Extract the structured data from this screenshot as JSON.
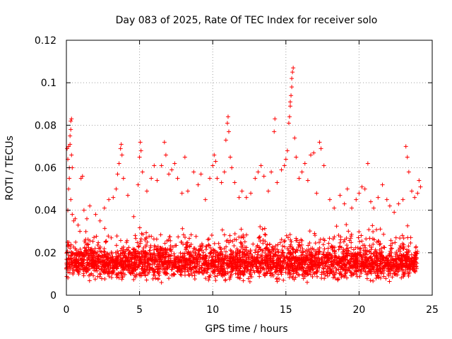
{
  "chart_data": {
    "type": "scatter",
    "title": "Day 083 of 2025, Rate Of TEC Index for receiver solo",
    "xlabel": "GPS time / hours",
    "ylabel": "ROTI / TECUs",
    "xlim": [
      0,
      25
    ],
    "ylim": [
      0,
      0.12
    ],
    "x_ticks": [
      0,
      5,
      10,
      15,
      20,
      25
    ],
    "x_tick_labels": [
      "0",
      "5",
      "10",
      "15",
      "20",
      "25"
    ],
    "y_ticks": [
      0,
      0.02,
      0.04,
      0.06,
      0.08,
      0.1,
      0.12
    ],
    "y_tick_labels": [
      "0",
      "0.02",
      "0.04",
      "0.06",
      "0.08",
      "0.1",
      "0.12"
    ],
    "grid": true,
    "legend": "none",
    "marker": "plus",
    "marker_color": "#ff0000",
    "series": [
      {
        "points": [
          [
            0.05,
            0.069
          ],
          [
            0.1,
            0.064
          ],
          [
            0.15,
            0.07
          ],
          [
            0.2,
            0.06
          ],
          [
            0.25,
            0.075
          ],
          [
            0.3,
            0.082
          ],
          [
            0.35,
            0.083
          ],
          [
            0.3,
            0.078
          ],
          [
            0.25,
            0.071
          ],
          [
            0.35,
            0.066
          ],
          [
            0.4,
            0.06
          ],
          [
            0.2,
            0.055
          ],
          [
            0.15,
            0.05
          ],
          [
            0.3,
            0.045
          ],
          [
            0.1,
            0.04
          ],
          [
            0.4,
            0.038
          ],
          [
            0.5,
            0.035
          ],
          [
            0.6,
            0.036
          ],
          [
            0.8,
            0.033
          ],
          [
            1.0,
            0.055
          ],
          [
            1.1,
            0.056
          ],
          [
            1.2,
            0.04
          ],
          [
            1.4,
            0.036
          ],
          [
            1.6,
            0.042
          ],
          [
            2.0,
            0.038
          ],
          [
            2.3,
            0.035
          ],
          [
            2.6,
            0.041
          ],
          [
            2.9,
            0.045
          ],
          [
            3.2,
            0.046
          ],
          [
            3.4,
            0.05
          ],
          [
            3.5,
            0.057
          ],
          [
            3.6,
            0.062
          ],
          [
            3.7,
            0.069
          ],
          [
            3.75,
            0.071
          ],
          [
            3.8,
            0.066
          ],
          [
            3.9,
            0.055
          ],
          [
            4.2,
            0.047
          ],
          [
            4.6,
            0.037
          ],
          [
            4.9,
            0.052
          ],
          [
            5.0,
            0.065
          ],
          [
            5.05,
            0.072
          ],
          [
            5.1,
            0.068
          ],
          [
            5.2,
            0.058
          ],
          [
            5.5,
            0.049
          ],
          [
            5.8,
            0.055
          ],
          [
            6.0,
            0.061
          ],
          [
            6.2,
            0.054
          ],
          [
            6.5,
            0.061
          ],
          [
            6.7,
            0.072
          ],
          [
            6.8,
            0.066
          ],
          [
            7.0,
            0.057
          ],
          [
            7.2,
            0.059
          ],
          [
            7.4,
            0.062
          ],
          [
            7.6,
            0.055
          ],
          [
            7.9,
            0.048
          ],
          [
            8.1,
            0.065
          ],
          [
            8.3,
            0.049
          ],
          [
            8.7,
            0.058
          ],
          [
            9.0,
            0.052
          ],
          [
            9.2,
            0.057
          ],
          [
            9.5,
            0.045
          ],
          [
            9.8,
            0.055
          ],
          [
            10.0,
            0.061
          ],
          [
            10.1,
            0.066
          ],
          [
            10.2,
            0.063
          ],
          [
            10.3,
            0.055
          ],
          [
            10.6,
            0.053
          ],
          [
            10.8,
            0.058
          ],
          [
            10.9,
            0.073
          ],
          [
            11.0,
            0.081
          ],
          [
            11.05,
            0.084
          ],
          [
            11.1,
            0.077
          ],
          [
            11.2,
            0.065
          ],
          [
            11.3,
            0.06
          ],
          [
            11.5,
            0.053
          ],
          [
            11.8,
            0.046
          ],
          [
            12.0,
            0.049
          ],
          [
            12.3,
            0.046
          ],
          [
            12.6,
            0.048
          ],
          [
            12.9,
            0.055
          ],
          [
            13.1,
            0.058
          ],
          [
            13.3,
            0.061
          ],
          [
            13.5,
            0.056
          ],
          [
            13.8,
            0.049
          ],
          [
            14.0,
            0.058
          ],
          [
            14.2,
            0.077
          ],
          [
            14.25,
            0.083
          ],
          [
            14.4,
            0.053
          ],
          [
            14.7,
            0.059
          ],
          [
            14.9,
            0.061
          ],
          [
            15.0,
            0.064
          ],
          [
            15.1,
            0.068
          ],
          [
            15.2,
            0.081
          ],
          [
            15.25,
            0.084
          ],
          [
            15.3,
            0.089
          ],
          [
            15.35,
            0.094
          ],
          [
            15.4,
            0.102
          ],
          [
            15.45,
            0.105
          ],
          [
            15.5,
            0.107
          ],
          [
            15.4,
            0.098
          ],
          [
            15.3,
            0.091
          ],
          [
            15.6,
            0.074
          ],
          [
            15.7,
            0.065
          ],
          [
            15.9,
            0.055
          ],
          [
            16.1,
            0.058
          ],
          [
            16.3,
            0.062
          ],
          [
            16.5,
            0.054
          ],
          [
            16.7,
            0.066
          ],
          [
            16.9,
            0.067
          ],
          [
            17.1,
            0.048
          ],
          [
            17.3,
            0.072
          ],
          [
            17.4,
            0.069
          ],
          [
            17.6,
            0.061
          ],
          [
            18.0,
            0.045
          ],
          [
            18.3,
            0.041
          ],
          [
            18.7,
            0.047
          ],
          [
            19.0,
            0.043
          ],
          [
            19.2,
            0.05
          ],
          [
            19.5,
            0.041
          ],
          [
            19.8,
            0.045
          ],
          [
            20.0,
            0.048
          ],
          [
            20.2,
            0.051
          ],
          [
            20.4,
            0.05
          ],
          [
            20.6,
            0.062
          ],
          [
            20.8,
            0.044
          ],
          [
            21.0,
            0.041
          ],
          [
            21.3,
            0.046
          ],
          [
            21.6,
            0.052
          ],
          [
            21.9,
            0.045
          ],
          [
            22.1,
            0.042
          ],
          [
            22.4,
            0.039
          ],
          [
            22.7,
            0.043
          ],
          [
            23.0,
            0.045
          ],
          [
            23.2,
            0.07
          ],
          [
            23.3,
            0.065
          ],
          [
            23.4,
            0.058
          ],
          [
            23.6,
            0.049
          ],
          [
            23.8,
            0.046
          ],
          [
            24.0,
            0.048
          ],
          [
            24.1,
            0.054
          ],
          [
            24.2,
            0.051
          ]
        ],
        "bulk": {
          "x_range": [
            0,
            24
          ],
          "typical_range": [
            0.005,
            0.025
          ],
          "note": "dense band of plus markers"
        }
      }
    ]
  }
}
